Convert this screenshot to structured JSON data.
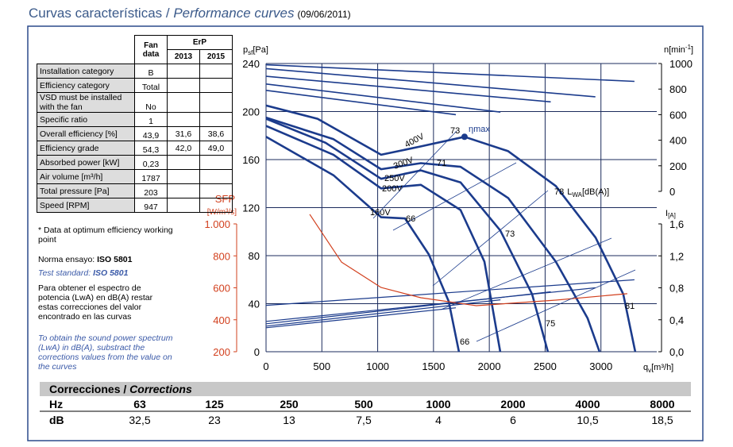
{
  "header": {
    "title": "Curvas características / ",
    "title_italic": "Performance curves",
    "date": "(09/06/2011)"
  },
  "fan_table": {
    "head": {
      "fan": "Fan data",
      "erp": "ErP",
      "y2013": "2013",
      "y2015": "2015"
    },
    "rows": [
      {
        "label": "Installation category",
        "fan": "B"
      },
      {
        "label": "Efficiency category",
        "fan": "Total"
      },
      {
        "label": "VSD must be installed with the fan",
        "fan": "No"
      },
      {
        "label": "Specific ratio",
        "fan": "1"
      },
      {
        "label": "Overall efficiency [%]",
        "fan": "43,9",
        "erp2013": "31,6",
        "erp2015": "38,6"
      },
      {
        "label": "Efficiency grade",
        "fan": "54,3",
        "erp2013": "42,0",
        "erp2015": "49,0"
      },
      {
        "label": "Absorbed power [kW]",
        "fan": "0,23"
      },
      {
        "label": "Air volume [m³/h]",
        "fan": "1787"
      },
      {
        "label": "Total pressure [Pa]",
        "fan": "203"
      },
      {
        "label": "Speed [RPM]",
        "fan": "947"
      }
    ]
  },
  "notes": {
    "optimum": "* Data at optimum efficiency working point",
    "norma": "Norma ensayo: ",
    "norma_std": "ISO 5801",
    "test": "Test standard: ",
    "test_std": "ISO 5801",
    "es": "Para obtener el espectro de potencia (LwA) en dB(A) restar estas correcciones del valor encontrado en las curvas",
    "en": "To obtain the sound power spectrum (LwA) in dB(A), substract the corrections values from the value on the curves"
  },
  "chart_data": {
    "type": "line",
    "x_label": {
      "main": "q",
      "sub": "v",
      "unit": "[m³/h]"
    },
    "y_label": {
      "main": "p",
      "sub": "sf",
      "unit": "[Pa]"
    },
    "y2_label": {
      "main": "n[min",
      "sup": "-1",
      "end": "]"
    },
    "y3_label": {
      "main": "I",
      "sub": "[A]"
    },
    "sfp_label": {
      "main": "SFP",
      "unit": "[W/m³/s]"
    },
    "xlim": [
      0,
      3500
    ],
    "xticks": [
      0,
      500,
      1000,
      1500,
      2000,
      2500,
      3000
    ],
    "ylim": [
      0,
      240
    ],
    "yticks": [
      0,
      40,
      80,
      120,
      160,
      200,
      240
    ],
    "y2lim": [
      0,
      1000
    ],
    "y2ticks": [
      0,
      200,
      400,
      600,
      800,
      1000
    ],
    "y3lim": [
      0,
      1.6
    ],
    "y3ticks": [
      {
        "value": 0,
        "label": "0,0"
      },
      {
        "value": 0.4,
        "label": "0,4"
      },
      {
        "value": 0.8,
        "label": "0,8"
      },
      {
        "value": 1.2,
        "label": "1,2"
      },
      {
        "value": 1.6,
        "label": "1,6"
      }
    ],
    "sfplim": [
      200,
      1000
    ],
    "sfpticks": [
      200,
      400,
      600,
      800,
      {
        "value": 1000,
        "label": "1.000"
      }
    ],
    "grid": true,
    "series": [
      {
        "name": "400V",
        "color": "#1b3b8c",
        "x": [
          0,
          462,
          1031,
          1387,
          1778,
          2169,
          2596,
          2952,
          3200,
          3307
        ],
        "values": [
          205,
          194,
          164,
          171,
          179,
          167,
          138,
          95,
          48,
          0
        ]
      },
      {
        "name": "300V",
        "color": "#1b3b8c",
        "x": [
          0,
          604,
          1031,
          1387,
          1742,
          2169,
          2596,
          2880,
          2987
        ],
        "values": [
          195,
          177,
          152,
          157,
          154,
          128,
          75,
          28,
          0
        ]
      },
      {
        "name": "250V",
        "color": "#1b3b8c",
        "x": [
          0,
          533,
          1031,
          1387,
          1742,
          2098,
          2383,
          2525
        ],
        "values": [
          194,
          174,
          144,
          151,
          141,
          101,
          48,
          0
        ]
      },
      {
        "name": "200V",
        "color": "#1b3b8c",
        "x": [
          0,
          604,
          1031,
          1387,
          1742,
          1956,
          2098
        ],
        "values": [
          188,
          164,
          136,
          139,
          118,
          75,
          0
        ]
      },
      {
        "name": "160V",
        "color": "#1b3b8c",
        "x": [
          0,
          604,
          1031,
          1245,
          1458,
          1636,
          1728
        ],
        "values": [
          179,
          147,
          112,
          111,
          81,
          42,
          0
        ]
      },
      {
        "color": "#1b3b8c",
        "axis": "y2",
        "x": [
          0,
          3300
        ],
        "values": [
          990,
          860
        ]
      },
      {
        "color": "#1b3b8c",
        "axis": "y2",
        "x": [
          0,
          2950
        ],
        "values": [
          960,
          740
        ]
      },
      {
        "color": "#1b3b8c",
        "axis": "y2",
        "x": [
          0,
          2550
        ],
        "values": [
          900,
          700
        ]
      },
      {
        "color": "#1b3b8c",
        "axis": "y2",
        "x": [
          0,
          2100
        ],
        "values": [
          840,
          620
        ]
      },
      {
        "color": "#1b3b8c",
        "axis": "y2",
        "x": [
          0,
          1700
        ],
        "values": [
          790,
          600
        ]
      },
      {
        "color": "#1b3b8c",
        "axis": "y3",
        "x": [
          0,
          3300
        ],
        "values": [
          0.58,
          0.9
        ]
      },
      {
        "color": "#1b3b8c",
        "axis": "y3",
        "x": [
          0,
          2950
        ],
        "values": [
          0.38,
          0.8
        ]
      },
      {
        "color": "#1b3b8c",
        "axis": "y3",
        "x": [
          0,
          2550
        ],
        "values": [
          0.35,
          0.75
        ]
      },
      {
        "color": "#1b3b8c",
        "axis": "y3",
        "x": [
          0,
          2100
        ],
        "values": [
          0.32,
          0.65
        ]
      },
      {
        "color": "#1b3b8c",
        "axis": "y3",
        "x": [
          0,
          1700
        ],
        "values": [
          0.3,
          0.55
        ]
      },
      {
        "color": "#d2401e",
        "axis": "sfp",
        "x": [
          391,
          676,
          1031,
          1387,
          1884,
          2596,
          3236
        ],
        "values": [
          1060,
          761,
          602,
          538,
          488,
          523,
          563
        ]
      }
    ],
    "optimum": {
      "x": 1778,
      "y": 179,
      "label": "ηmax",
      "eff": "73"
    },
    "lwa": {
      "value": "78",
      "main": "L",
      "sub": "WA",
      "unit": "[dB(A)]"
    },
    "annotations": [
      "71",
      "66",
      "73",
      "75",
      "81",
      "66"
    ]
  },
  "corrections": {
    "title": "Correcciones / ",
    "title_italic": "Corrections",
    "hz_label": "Hz",
    "db_label": "dB",
    "hz": [
      "63",
      "125",
      "250",
      "500",
      "1000",
      "2000",
      "4000",
      "8000"
    ],
    "db": [
      "32,5",
      "23",
      "13",
      "7,5",
      "4",
      "6",
      "10,5",
      "18,5"
    ]
  }
}
